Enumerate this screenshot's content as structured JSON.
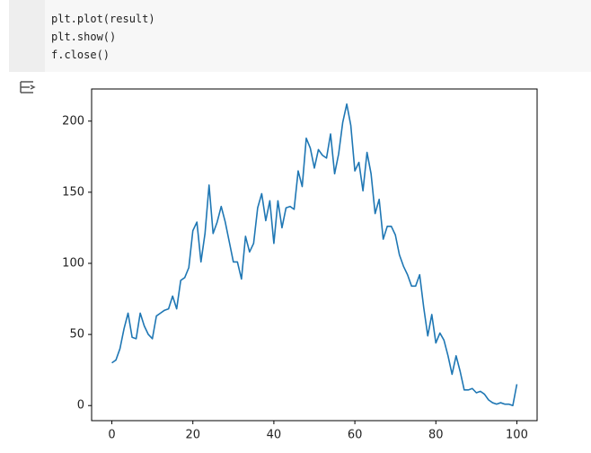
{
  "code": {
    "lines": [
      "plt.plot(result)",
      "plt.show()",
      "f.close()"
    ]
  },
  "chart_data": {
    "type": "line",
    "x": [
      0,
      1,
      2,
      3,
      4,
      5,
      6,
      7,
      8,
      9,
      10,
      11,
      12,
      13,
      14,
      15,
      16,
      17,
      18,
      19,
      20,
      21,
      22,
      23,
      24,
      25,
      26,
      27,
      28,
      29,
      30,
      31,
      32,
      33,
      34,
      35,
      36,
      37,
      38,
      39,
      40,
      41,
      42,
      43,
      44,
      45,
      46,
      47,
      48,
      49,
      50,
      51,
      52,
      53,
      54,
      55,
      56,
      57,
      58,
      59,
      60,
      61,
      62,
      63,
      64,
      65,
      66,
      67,
      68,
      69,
      70,
      71,
      72,
      73,
      74,
      75,
      76,
      77,
      78,
      79,
      80,
      81,
      82,
      83,
      84,
      85,
      86,
      87,
      88,
      89,
      90,
      91,
      92,
      93,
      94,
      95,
      96,
      97,
      98,
      99,
      100
    ],
    "values": [
      30,
      32,
      40,
      54,
      65,
      48,
      47,
      65,
      56,
      50,
      47,
      63,
      65,
      67,
      68,
      77,
      68,
      88,
      90,
      97,
      123,
      129,
      101,
      121,
      155,
      121,
      129,
      140,
      129,
      115,
      101,
      101,
      89,
      119,
      108,
      114,
      139,
      149,
      130,
      144,
      114,
      144,
      125,
      139,
      140,
      138,
      165,
      154,
      188,
      181,
      167,
      180,
      176,
      174,
      191,
      163,
      177,
      199,
      212,
      197,
      165,
      171,
      151,
      178,
      163,
      135,
      145,
      117,
      126,
      126,
      120,
      106,
      98,
      92,
      84,
      84,
      92,
      69,
      49,
      64,
      44,
      51,
      46,
      35,
      22,
      35,
      24,
      11,
      11,
      12,
      9,
      10,
      8,
      4,
      2,
      1,
      2,
      1,
      1,
      0,
      15
    ],
    "color": "#1f77b4",
    "xlim": [
      -5,
      105
    ],
    "ylim": [
      -10.6,
      222.6
    ],
    "xticks": [
      0,
      20,
      40,
      60,
      80,
      100
    ],
    "yticks": [
      0,
      50,
      100,
      150,
      200
    ]
  }
}
